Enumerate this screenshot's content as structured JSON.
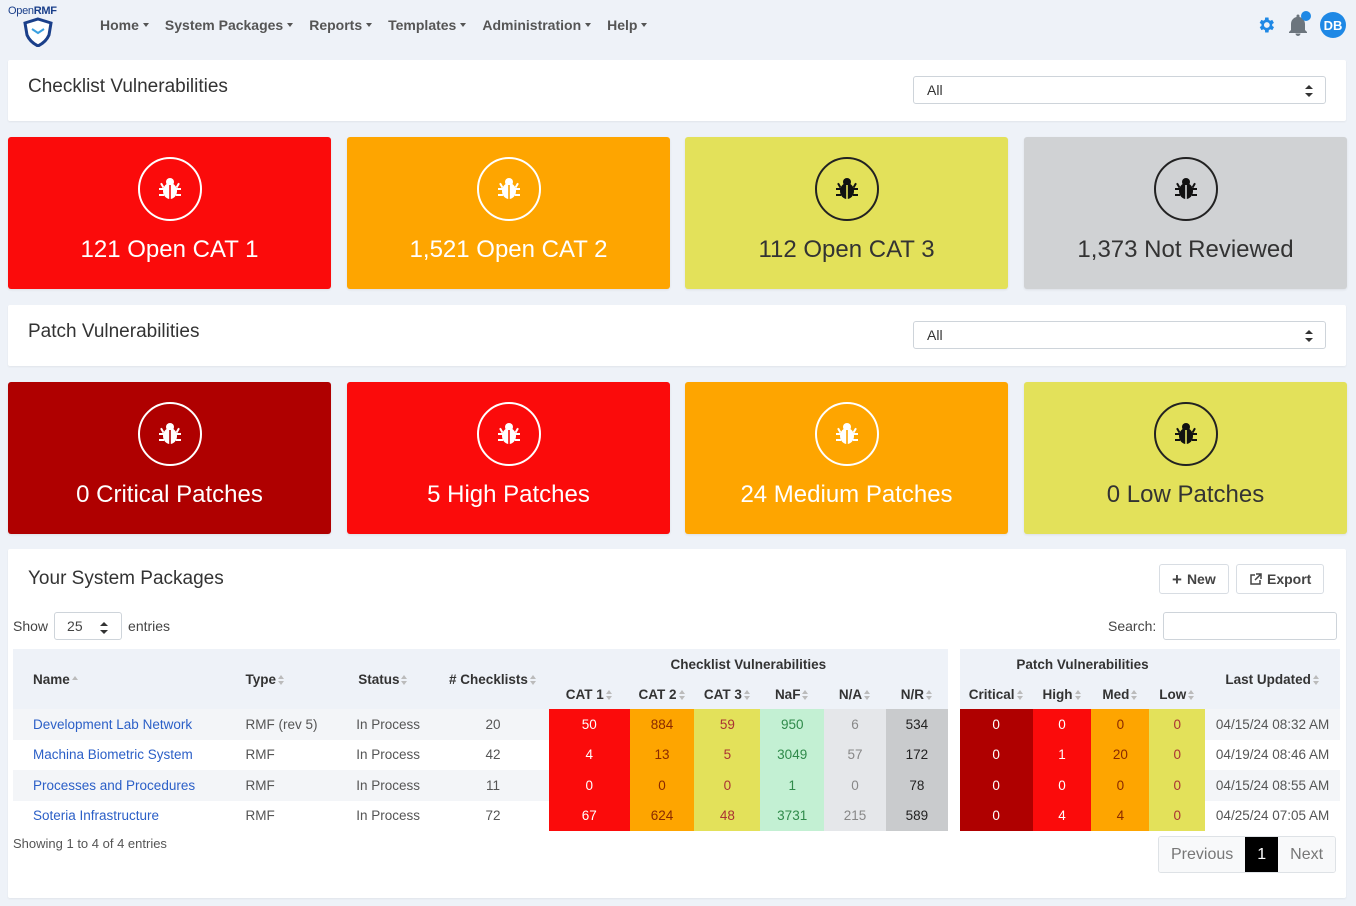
{
  "brand": {
    "open": "Open",
    "rmf": "RMF"
  },
  "nav": {
    "items": [
      {
        "label": "Home"
      },
      {
        "label": "System Packages"
      },
      {
        "label": "Reports"
      },
      {
        "label": "Templates"
      },
      {
        "label": "Administration"
      },
      {
        "label": "Help"
      }
    ],
    "avatar": "DB"
  },
  "checklist": {
    "title": "Checklist Vulnerabilities",
    "filter": "All",
    "cards": [
      {
        "label": "121 Open CAT 1",
        "color": "#fb0b0b"
      },
      {
        "label": "1,521 Open CAT 2",
        "color": "#fea500"
      },
      {
        "label": "112 Open CAT 3",
        "color": "#e3e15a"
      },
      {
        "label": "1,373 Not Reviewed",
        "color": "#d0d2d4"
      }
    ]
  },
  "patch": {
    "title": "Patch Vulnerabilities",
    "filter": "All",
    "cards": [
      {
        "label": "0 Critical Patches",
        "color": "#af0000"
      },
      {
        "label": "5 High Patches",
        "color": "#fb0b0b"
      },
      {
        "label": "24 Medium Patches",
        "color": "#fea500"
      },
      {
        "label": "0 Low Patches",
        "color": "#e3e15a"
      }
    ]
  },
  "packages": {
    "title": "Your System Packages",
    "new_label": "New",
    "export_label": "Export",
    "show_label": "Show",
    "entries_label": "entries",
    "page_length": "25",
    "search_label": "Search:",
    "headers": {
      "name": "Name",
      "type": "Type",
      "status": "Status",
      "checklists": "# Checklists",
      "checklist_group": "Checklist Vulnerabilities",
      "patch_group": "Patch Vulnerabilities",
      "last_updated": "Last Updated",
      "cat1": "CAT 1",
      "cat2": "CAT 2",
      "cat3": "CAT 3",
      "naf": "NaF",
      "na": "N/A",
      "nr": "N/R",
      "critical": "Critical",
      "high": "High",
      "med": "Med",
      "low": "Low"
    },
    "rows": [
      {
        "name": "Development Lab Network",
        "type": "RMF (rev 5)",
        "status": "In Process",
        "checklists": "20",
        "cat1": "50",
        "cat2": "884",
        "cat3": "59",
        "naf": "950",
        "na": "6",
        "nr": "534",
        "critical": "0",
        "high": "0",
        "med": "0",
        "low": "0",
        "updated": "04/15/24 08:32 AM"
      },
      {
        "name": "Machina Biometric System",
        "type": "RMF",
        "status": "In Process",
        "checklists": "42",
        "cat1": "4",
        "cat2": "13",
        "cat3": "5",
        "naf": "3049",
        "na": "57",
        "nr": "172",
        "critical": "0",
        "high": "1",
        "med": "20",
        "low": "0",
        "updated": "04/19/24 08:46 AM"
      },
      {
        "name": "Processes and Procedures",
        "type": "RMF",
        "status": "In Process",
        "checklists": "11",
        "cat1": "0",
        "cat2": "0",
        "cat3": "0",
        "naf": "1",
        "na": "0",
        "nr": "78",
        "critical": "0",
        "high": "0",
        "med": "0",
        "low": "0",
        "updated": "04/15/24 08:55 AM"
      },
      {
        "name": "Soteria Infrastructure",
        "type": "RMF",
        "status": "In Process",
        "checklists": "72",
        "cat1": "67",
        "cat2": "624",
        "cat3": "48",
        "naf": "3731",
        "na": "215",
        "nr": "589",
        "critical": "0",
        "high": "4",
        "med": "4",
        "low": "0",
        "updated": "04/25/24 07:05 AM"
      }
    ],
    "info": "Showing 1 to 4 of 4 entries",
    "pager": {
      "previous": "Previous",
      "current": "1",
      "next": "Next"
    }
  }
}
